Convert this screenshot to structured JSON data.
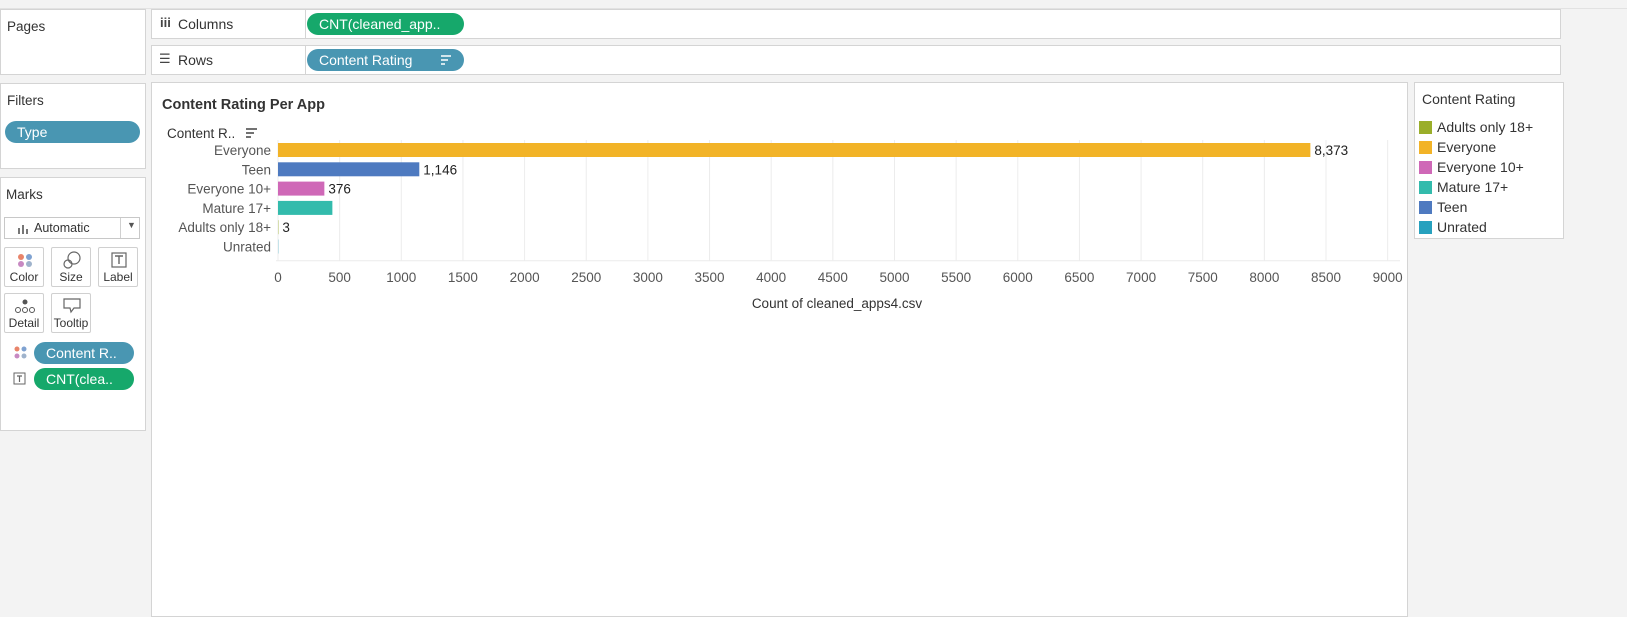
{
  "pages": {
    "title": "Pages"
  },
  "filters": {
    "title": "Filters",
    "pill": "Type"
  },
  "marks": {
    "title": "Marks",
    "mark_type": "Automatic",
    "buttons": {
      "color": "Color",
      "size": "Size",
      "label": "Label",
      "detail": "Detail",
      "tooltip": "Tooltip"
    },
    "pills": {
      "color_field": "Content R..",
      "label_field": "CNT(clea.."
    }
  },
  "shelves": {
    "columns_label": "Columns",
    "columns_pill": "CNT(cleaned_app..",
    "rows_label": "Rows",
    "rows_pill": "Content Rating"
  },
  "legend": {
    "title": "Content Rating",
    "items": [
      {
        "label": "Adults only 18+",
        "color": "#9aae2a"
      },
      {
        "label": "Everyone",
        "color": "#f2b327"
      },
      {
        "label": "Everyone 10+",
        "color": "#cf68b7"
      },
      {
        "label": "Mature 17+",
        "color": "#33bbac"
      },
      {
        "label": "Teen",
        "color": "#4e7ac0"
      },
      {
        "label": "Unrated",
        "color": "#27a1be"
      }
    ]
  },
  "chart_data": {
    "type": "bar",
    "orientation": "horizontal",
    "title": "Content Rating Per App",
    "row_header": "Content R..",
    "xlabel": "Count of cleaned_apps4.csv",
    "categories": [
      "Everyone",
      "Teen",
      "Everyone 10+",
      "Mature 17+",
      "Adults only 18+",
      "Unrated"
    ],
    "values": [
      8373,
      1146,
      376,
      441,
      3,
      2
    ],
    "value_labels": [
      "8,373",
      "1,146",
      "376",
      "",
      "3",
      ""
    ],
    "colors": [
      "#f2b327",
      "#4e7ac0",
      "#cf68b7",
      "#33bbac",
      "#9aae2a",
      "#27a1be"
    ],
    "xticks": [
      "0",
      "500",
      "1000",
      "1500",
      "2000",
      "2500",
      "3000",
      "3500",
      "4000",
      "4500",
      "5000",
      "5500",
      "6000",
      "6500",
      "7000",
      "7500",
      "8000",
      "8500",
      "9000"
    ],
    "xlim": [
      0,
      9100
    ],
    "grid": true
  }
}
